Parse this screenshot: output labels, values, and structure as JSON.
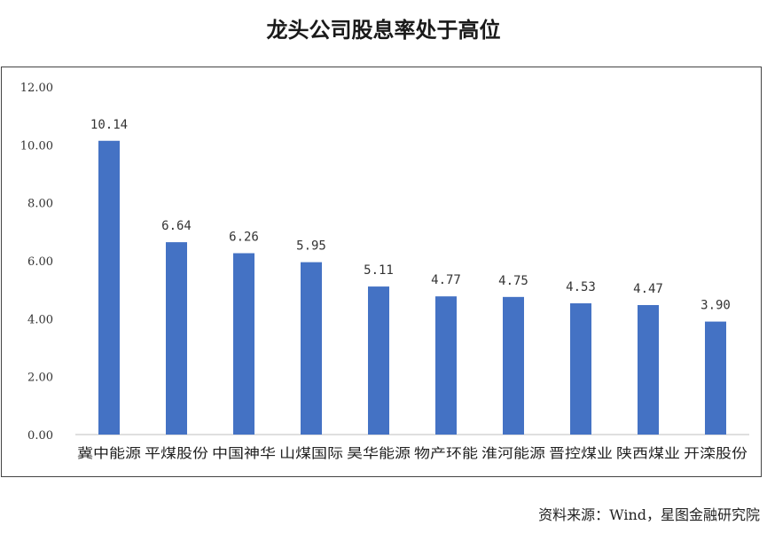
{
  "chart_data": {
    "type": "bar",
    "title": "龙头公司股息率处于高位",
    "categories": [
      "冀中能源",
      "平煤股份",
      "中国神华",
      "山煤国际",
      "昊华能源",
      "物产环能",
      "淮河能源",
      "晋控煤业",
      "陕西煤业",
      "开滦股份"
    ],
    "values": [
      10.14,
      6.64,
      6.26,
      5.95,
      5.11,
      4.77,
      4.75,
      4.53,
      4.47,
      3.9
    ],
    "data_labels": [
      "10.14",
      "6.64",
      "6.26",
      "5.95",
      "5.11",
      "4.77",
      "4.75",
      "4.53",
      "4.47",
      "3.90"
    ],
    "ylim": [
      0,
      12
    ],
    "yticks": [
      "0.00",
      "2.00",
      "4.00",
      "6.00",
      "8.00",
      "10.00",
      "12.00"
    ],
    "xlabel": "",
    "ylabel": "",
    "grid": false,
    "legend": "none",
    "bar_color": "#4472C4"
  },
  "footer": {
    "source": "资料来源：Wind，星图金融研究院"
  }
}
